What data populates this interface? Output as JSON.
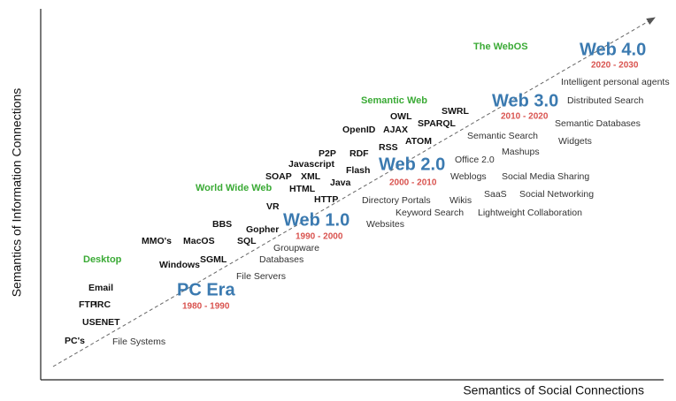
{
  "axes": {
    "y_label": "Semantics of Information Connections",
    "x_label": "Semantics of Social Connections"
  },
  "eras": [
    {
      "name": "PC Era",
      "dates": "1980 - 1990"
    },
    {
      "name": "Web 1.0",
      "dates": "1990 - 2000"
    },
    {
      "name": "Web 2.0",
      "dates": "2000 - 2010"
    },
    {
      "name": "Web 3.0",
      "dates": "2010 - 2020"
    },
    {
      "name": "Web 4.0",
      "dates": "2020 - 2030"
    }
  ],
  "themes": [
    "Desktop",
    "World Wide Web",
    "Semantic Web",
    "The WebOS"
  ],
  "technologies": [
    "PC's",
    "USENET",
    "FTP",
    "IRC",
    "Email",
    "Windows",
    "MMO's",
    "MacOS",
    "SGML",
    "BBS",
    "SQL",
    "Gopher",
    "VR",
    "SOAP",
    "XML",
    "HTML",
    "Javascript",
    "P2P",
    "RDF",
    "Flash",
    "Java",
    "HTTP",
    "OpenID",
    "AJAX",
    "OWL",
    "SPARQL",
    "SWRL",
    "RSS",
    "ATOM"
  ],
  "concepts": [
    "File Systems",
    "File Servers",
    "Databases",
    "Groupware",
    "Websites",
    "Directory Portals",
    "Keyword Search",
    "Wikis",
    "Weblogs",
    "Office 2.0",
    "Mashups",
    "Semantic Search",
    "Social Media Sharing",
    "SaaS",
    "Social Networking",
    "Lightweight Collaboration",
    "Semantic Databases",
    "Widgets",
    "Distributed Search",
    "Intelligent personal agents"
  ]
}
